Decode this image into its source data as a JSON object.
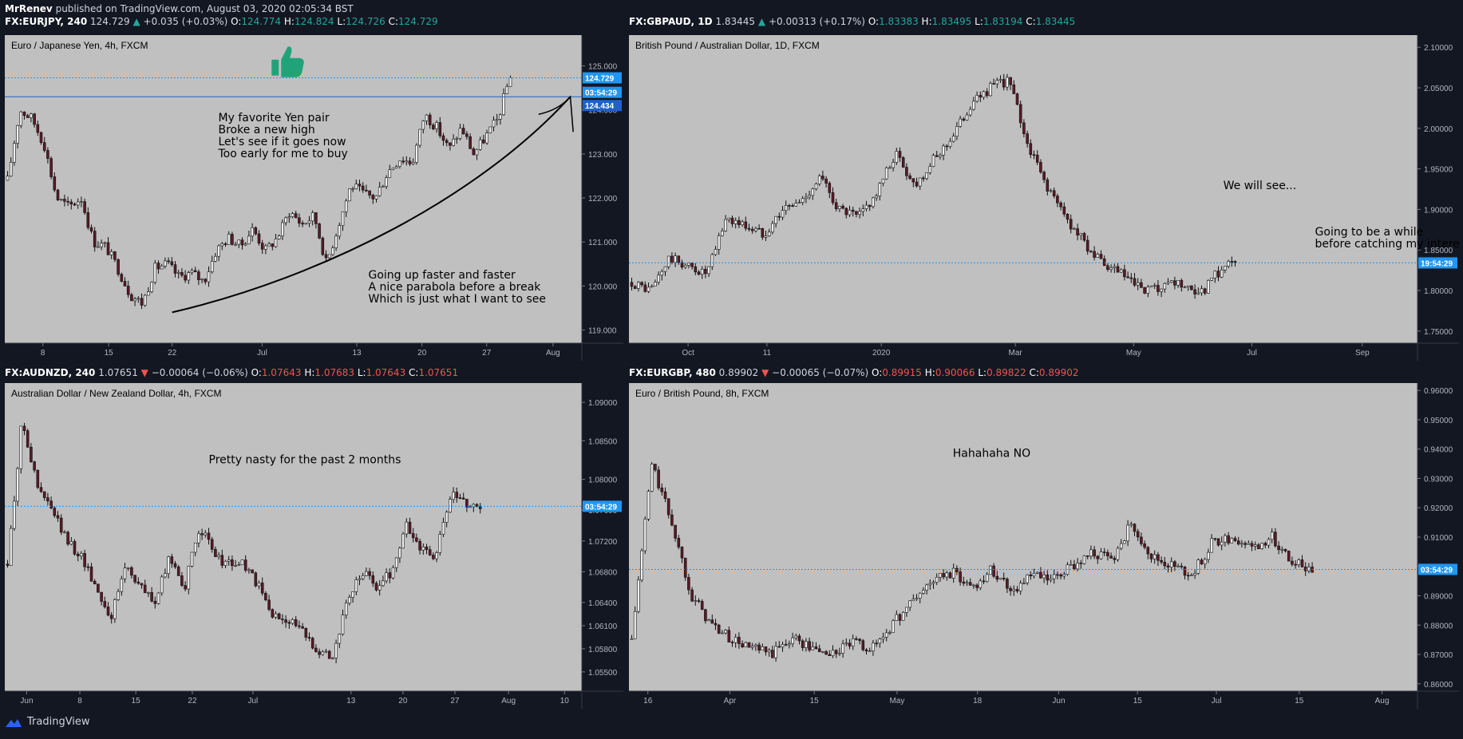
{
  "header": {
    "author": "MrRenev",
    "published": "published on TradingView.com, August 03, 2020 02:05:34 BST"
  },
  "footer": {
    "brand": "TradingView"
  },
  "colors": {
    "bg": "#131722",
    "plot": "#c0c0c0",
    "up": "#26a69a",
    "down": "#ef5350",
    "blue": "#2196f3",
    "hline": "#1e88e5",
    "text": "#000000"
  },
  "chart_data": [
    {
      "id": "eurjpy",
      "type": "candlestick",
      "symbol": "FX:EURJPY, 240",
      "last": "124.729",
      "change": "+0.035 (+0.03%)",
      "direction": "up",
      "ohlc": {
        "O": "124.774",
        "H": "124.824",
        "L": "124.726",
        "C": "124.729"
      },
      "title": "Euro / Japanese Yen, 4h, FXCM",
      "yticks": [
        "125.000",
        "124.000",
        "123.000",
        "122.000",
        "121.000",
        "120.000",
        "119.000"
      ],
      "ylim": [
        118.7,
        125.7
      ],
      "xticks": [
        "8",
        "15",
        "22",
        "Jul",
        "13",
        "20",
        "27",
        "Aug"
      ],
      "xtick_pos": [
        0.066,
        0.18,
        0.29,
        0.446,
        0.61,
        0.723,
        0.835,
        0.95
      ],
      "labels": [
        {
          "text": "124.729",
          "color": "#2196f3",
          "y": 124.729
        },
        {
          "text": "03:54:29",
          "color": "#2196f3",
          "y": 124.4
        },
        {
          "text": "124.434",
          "color": "#1e62c9",
          "y": 124.1
        }
      ],
      "annotations": [
        {
          "text": [
            "My favorite Yen pair",
            "Broke a new high",
            "Let's see if it goes now",
            "Too early for me to buy"
          ],
          "x": 0.37,
          "y": 0.28
        },
        {
          "text": [
            "Going up faster and faster",
            "A nice parabola before a break",
            "Which is just what I want to see"
          ],
          "x": 0.63,
          "y": 0.79
        }
      ],
      "trend": [
        [
          119.4,
          119.2
        ],
        [
          121.5,
          120.2
        ],
        [
          124.6,
          122.1
        ],
        [
          125.0,
          124.3
        ]
      ],
      "path": [
        122.4,
        124.0,
        123.8,
        123.2,
        122.0,
        121.8,
        122.0,
        121.0,
        120.9,
        120.4,
        119.8,
        119.6,
        120.4,
        120.5,
        120.2,
        120.3,
        120.1,
        120.8,
        121.1,
        120.9,
        121.3,
        120.8,
        121.1,
        121.7,
        121.4,
        121.6,
        120.5,
        121.4,
        122.3,
        122.1,
        122.0,
        122.6,
        122.9,
        122.8,
        123.9,
        123.6,
        123.1,
        123.6,
        123.0,
        123.4,
        123.8,
        124.8
      ],
      "thumb": true,
      "thumb_x": 0.49,
      "thumb_y": 0.09
    },
    {
      "id": "gbpaud",
      "type": "candlestick",
      "symbol": "FX:GBPAUD, 1D",
      "last": "1.83445",
      "change": "+0.00313 (+0.17%)",
      "direction": "up",
      "ohlc": {
        "O": "1.83383",
        "H": "1.83495",
        "L": "1.83194",
        "C": "1.83445"
      },
      "title": "British Pound / Australian Dollar, 1D, FXCM",
      "yticks": [
        "2.10000",
        "2.05000",
        "2.00000",
        "1.95000",
        "1.90000",
        "1.85000",
        "1.80000",
        "1.75000"
      ],
      "ylim": [
        1.735,
        2.115
      ],
      "xticks": [
        "Oct",
        "11",
        "2020",
        "Mar",
        "May",
        "Jul",
        "Sep"
      ],
      "xtick_pos": [
        0.075,
        0.175,
        0.32,
        0.49,
        0.64,
        0.79,
        0.93
      ],
      "labels": [
        {
          "text": "19:54:29",
          "color": "#2196f3",
          "y": 1.834
        }
      ],
      "annotations": [
        {
          "text": [
            "We will see..."
          ],
          "x": 0.8,
          "y": 0.5
        },
        {
          "text": [
            "Going to be a while",
            "before catching my interest"
          ],
          "x": 0.87,
          "y": 0.65
        }
      ],
      "path": [
        1.81,
        1.8,
        1.84,
        1.83,
        1.82,
        1.89,
        1.88,
        1.87,
        1.9,
        1.91,
        1.94,
        1.9,
        1.89,
        1.92,
        1.97,
        1.93,
        1.96,
        1.99,
        2.03,
        2.05,
        2.06,
        1.98,
        1.93,
        1.89,
        1.86,
        1.83,
        1.82,
        1.8,
        1.8,
        1.81,
        1.79,
        1.82,
        1.84
      ]
    },
    {
      "id": "audnzd",
      "type": "candlestick",
      "symbol": "FX:AUDNZD, 240",
      "last": "1.07651",
      "change": "−0.00064 (−0.06%)",
      "direction": "down",
      "ohlc": {
        "O": "1.07643",
        "H": "1.07683",
        "L": "1.07643",
        "C": "1.07651"
      },
      "title": "Australian Dollar / New Zealand Dollar, 4h, FXCM",
      "yticks": [
        "1.09000",
        "1.08500",
        "1.08000",
        "1.07600",
        "1.07200",
        "1.06800",
        "1.06400",
        "1.06100",
        "1.05800",
        "1.05500"
      ],
      "ylim": [
        1.0525,
        1.0925
      ],
      "xticks": [
        "Jun",
        "8",
        "15",
        "22",
        "Jul",
        "13",
        "20",
        "27",
        "Aug",
        "10"
      ],
      "xtick_pos": [
        0.038,
        0.13,
        0.227,
        0.325,
        0.43,
        0.6,
        0.69,
        0.78,
        0.873,
        0.97
      ],
      "labels": [
        {
          "text": "03:54:29",
          "color": "#2196f3",
          "y": 1.0765
        }
      ],
      "annotations": [
        {
          "text": [
            "Pretty nasty for the past 2 months"
          ],
          "x": 0.52,
          "y": 0.26
        }
      ],
      "path": [
        1.069,
        1.088,
        1.079,
        1.076,
        1.072,
        1.07,
        1.066,
        1.062,
        1.069,
        1.066,
        1.064,
        1.07,
        1.066,
        1.074,
        1.07,
        1.069,
        1.069,
        1.066,
        1.062,
        1.062,
        1.06,
        1.058,
        1.057,
        1.064,
        1.068,
        1.066,
        1.068,
        1.074,
        1.071,
        1.07,
        1.078,
        1.077,
        1.0765
      ]
    },
    {
      "id": "eurgbp",
      "type": "candlestick",
      "symbol": "FX:EURGBP, 480",
      "last": "0.89902",
      "change": "−0.00065 (−0.07%)",
      "direction": "down",
      "ohlc": {
        "O": "0.89915",
        "H": "0.90066",
        "L": "0.89822",
        "C": "0.89902"
      },
      "title": "Euro / British Pound, 8h, FXCM",
      "yticks": [
        "0.96000",
        "0.95000",
        "0.94000",
        "0.93000",
        "0.92000",
        "0.91000",
        "0.90000",
        "0.89000",
        "0.88000",
        "0.87000",
        "0.86000"
      ],
      "ylim": [
        0.8575,
        0.9625
      ],
      "xticks": [
        "16",
        "Apr",
        "15",
        "May",
        "18",
        "Jun",
        "15",
        "Jul",
        "15",
        "Aug"
      ],
      "xtick_pos": [
        0.024,
        0.128,
        0.235,
        0.34,
        0.442,
        0.545,
        0.645,
        0.745,
        0.85,
        0.955
      ],
      "labels": [
        {
          "text": "03:54:29",
          "color": "#2196f3",
          "y": 0.899
        }
      ],
      "annotations": [
        {
          "text": [
            "Hahahaha NO"
          ],
          "x": 0.46,
          "y": 0.24
        }
      ],
      "path": [
        0.875,
        0.935,
        0.915,
        0.89,
        0.88,
        0.875,
        0.872,
        0.87,
        0.876,
        0.872,
        0.87,
        0.874,
        0.872,
        0.88,
        0.888,
        0.895,
        0.898,
        0.893,
        0.899,
        0.892,
        0.897,
        0.895,
        0.9,
        0.905,
        0.902,
        0.915,
        0.903,
        0.9,
        0.897,
        0.908,
        0.91,
        0.906,
        0.91,
        0.902,
        0.899
      ]
    }
  ]
}
